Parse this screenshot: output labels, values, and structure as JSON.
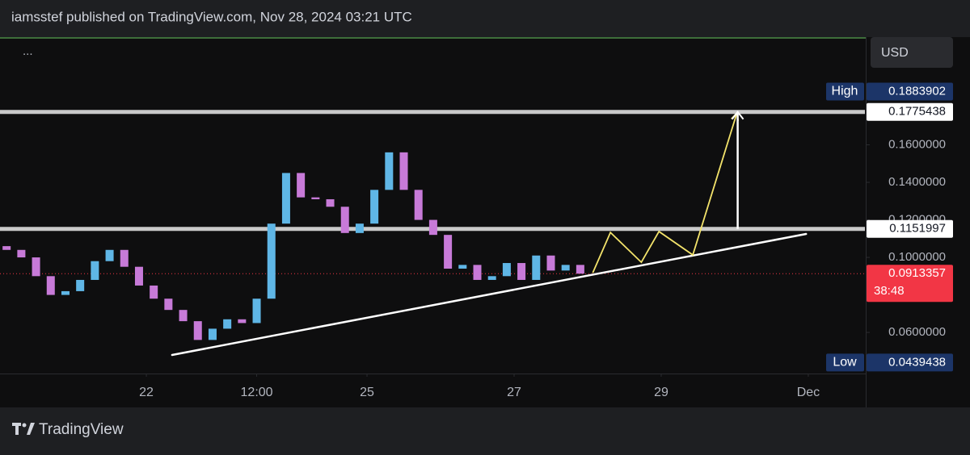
{
  "header": {
    "title": "iamsstef published on TradingView.com, Nov 28, 2024 03:21 UTC"
  },
  "toolbar": {
    "menu": "...",
    "currency": "USD"
  },
  "footer": {
    "brand": "TradingView"
  },
  "chart_data": {
    "type": "candlestick",
    "x": [
      20.1,
      20.3,
      20.5,
      20.7,
      20.9,
      21.1,
      21.3,
      21.5,
      21.7,
      21.9,
      22.1,
      22.3,
      22.5,
      22.7,
      22.9,
      23.1,
      23.3,
      23.5,
      23.7,
      23.9,
      24.1,
      24.3,
      24.5,
      24.7,
      24.9,
      25.1,
      25.3,
      25.5,
      25.7,
      25.9,
      26.1,
      26.3,
      26.5,
      26.7,
      26.9,
      27.1,
      27.3,
      27.5,
      27.7,
      27.9
    ],
    "open": [
      0.106,
      0.104,
      0.1,
      0.09,
      0.08,
      0.082,
      0.088,
      0.098,
      0.104,
      0.095,
      0.085,
      0.078,
      0.072,
      0.066,
      0.056,
      0.062,
      0.067,
      0.065,
      0.078,
      0.118,
      0.145,
      0.132,
      0.131,
      0.127,
      0.113,
      0.118,
      0.136,
      0.156,
      0.136,
      0.12,
      0.112,
      0.094,
      0.096,
      0.088,
      0.09,
      0.097,
      0.088,
      0.101,
      0.093,
      0.096
    ],
    "high": {
      "name": "High",
      "value": 0.1883902
    },
    "low": {
      "name": "Low",
      "value": 0.0439438
    },
    "close": [
      0.104,
      0.1,
      0.09,
      0.08,
      0.082,
      0.088,
      0.098,
      0.104,
      0.095,
      0.085,
      0.078,
      0.072,
      0.066,
      0.056,
      0.062,
      0.067,
      0.065,
      0.078,
      0.118,
      0.145,
      0.132,
      0.131,
      0.127,
      0.113,
      0.118,
      0.136,
      0.156,
      0.136,
      0.12,
      0.112,
      0.094,
      0.096,
      0.088,
      0.09,
      0.097,
      0.088,
      0.101,
      0.093,
      0.096,
      0.0913357
    ],
    "colors": {
      "up": "#5fb6e6",
      "down": "#c77ad8"
    },
    "xlim": [
      20.01,
      31.77
    ],
    "xticks": [
      22,
      {
        "value": 23.5,
        "label": "12:00"
      },
      25,
      27,
      29,
      {
        "value": 31,
        "label": "Dec"
      }
    ],
    "ylim": [
      0.0381,
      0.217
    ],
    "yticks": [
      {
        "value": 0.16,
        "label": "0.1600000"
      },
      {
        "value": 0.14,
        "label": "0.1400000"
      },
      {
        "value": 0.12,
        "label": "0.1200000"
      },
      {
        "value": 0.1,
        "label": "0.1000000"
      },
      {
        "value": 0.06,
        "label": "0.0600000"
      }
    ],
    "grid": false,
    "levels": [
      0.1775438,
      0.1151997
    ],
    "levels_color": "#c9c9c9",
    "last": {
      "value": 0.0913357,
      "countdown": "38:48",
      "color": "#f23645"
    },
    "trendline": {
      "x": [
        22.35,
        30.97
      ],
      "y": [
        0.048,
        0.1125
      ],
      "color": "#ffffff"
    },
    "projection": {
      "x": [
        28.07,
        28.31,
        28.73,
        28.97,
        29.43,
        30.03
      ],
      "y": [
        0.0918,
        0.1133,
        0.0974,
        0.1138,
        0.1013,
        0.177
      ],
      "color": "#f3e36b"
    },
    "target_arrow": {
      "x": 30.04,
      "from": 0.1151997,
      "to": 0.1775438,
      "color": "#ffffff"
    }
  }
}
